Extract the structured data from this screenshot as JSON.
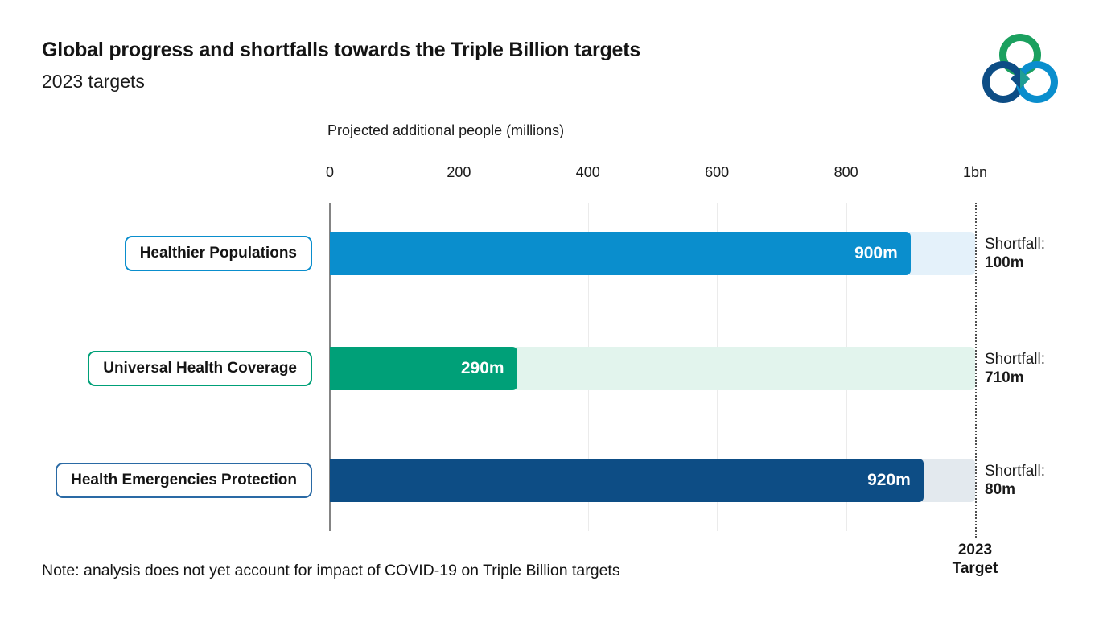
{
  "header": {
    "title": "Global progress and shortfalls towards the Triple Billion targets",
    "subtitle": "2023 targets"
  },
  "logo": {
    "name": "triple-billion-logo",
    "ring_colors": {
      "top": "#1ba05f",
      "bottom_left": "#0d4d85",
      "bottom_right": "#0a8ecd"
    }
  },
  "chart_data": {
    "type": "bar",
    "orientation": "horizontal",
    "axis_title": "Projected additional people (millions)",
    "xlim": [
      0,
      1000
    ],
    "grid": "vertical",
    "ticks": [
      {
        "label": "0",
        "value": 0
      },
      {
        "label": "200",
        "value": 200
      },
      {
        "label": "400",
        "value": 400
      },
      {
        "label": "600",
        "value": 600
      },
      {
        "label": "800",
        "value": 800
      },
      {
        "label": "1bn",
        "value": 1000
      }
    ],
    "target": {
      "value": 1000,
      "line1": "2023",
      "line2": "Target"
    },
    "rows": [
      {
        "label": "Healthier Populations",
        "value": 900,
        "value_label": "900m",
        "shortfall_label": "Shortfall:",
        "shortfall_value": "100m",
        "shortfall": 100,
        "color": "#0a8ecd",
        "track_color": "#e4f1fa",
        "border_color": "#0a8ecd"
      },
      {
        "label": "Universal Health Coverage",
        "value": 290,
        "value_label": "290m",
        "shortfall_label": "Shortfall:",
        "shortfall_value": "710m",
        "shortfall": 710,
        "color": "#00a078",
        "track_color": "#e2f4ed",
        "border_color": "#00a078"
      },
      {
        "label": "Health Emergencies Protection",
        "value": 920,
        "value_label": "920m",
        "shortfall_label": "Shortfall:",
        "shortfall_value": "80m",
        "shortfall": 80,
        "color": "#0d4d85",
        "track_color": "#e3e9ee",
        "border_color": "#2a6aa5"
      }
    ]
  },
  "note": "Note: analysis does not yet account for impact of COVID-19 on Triple Billion targets"
}
